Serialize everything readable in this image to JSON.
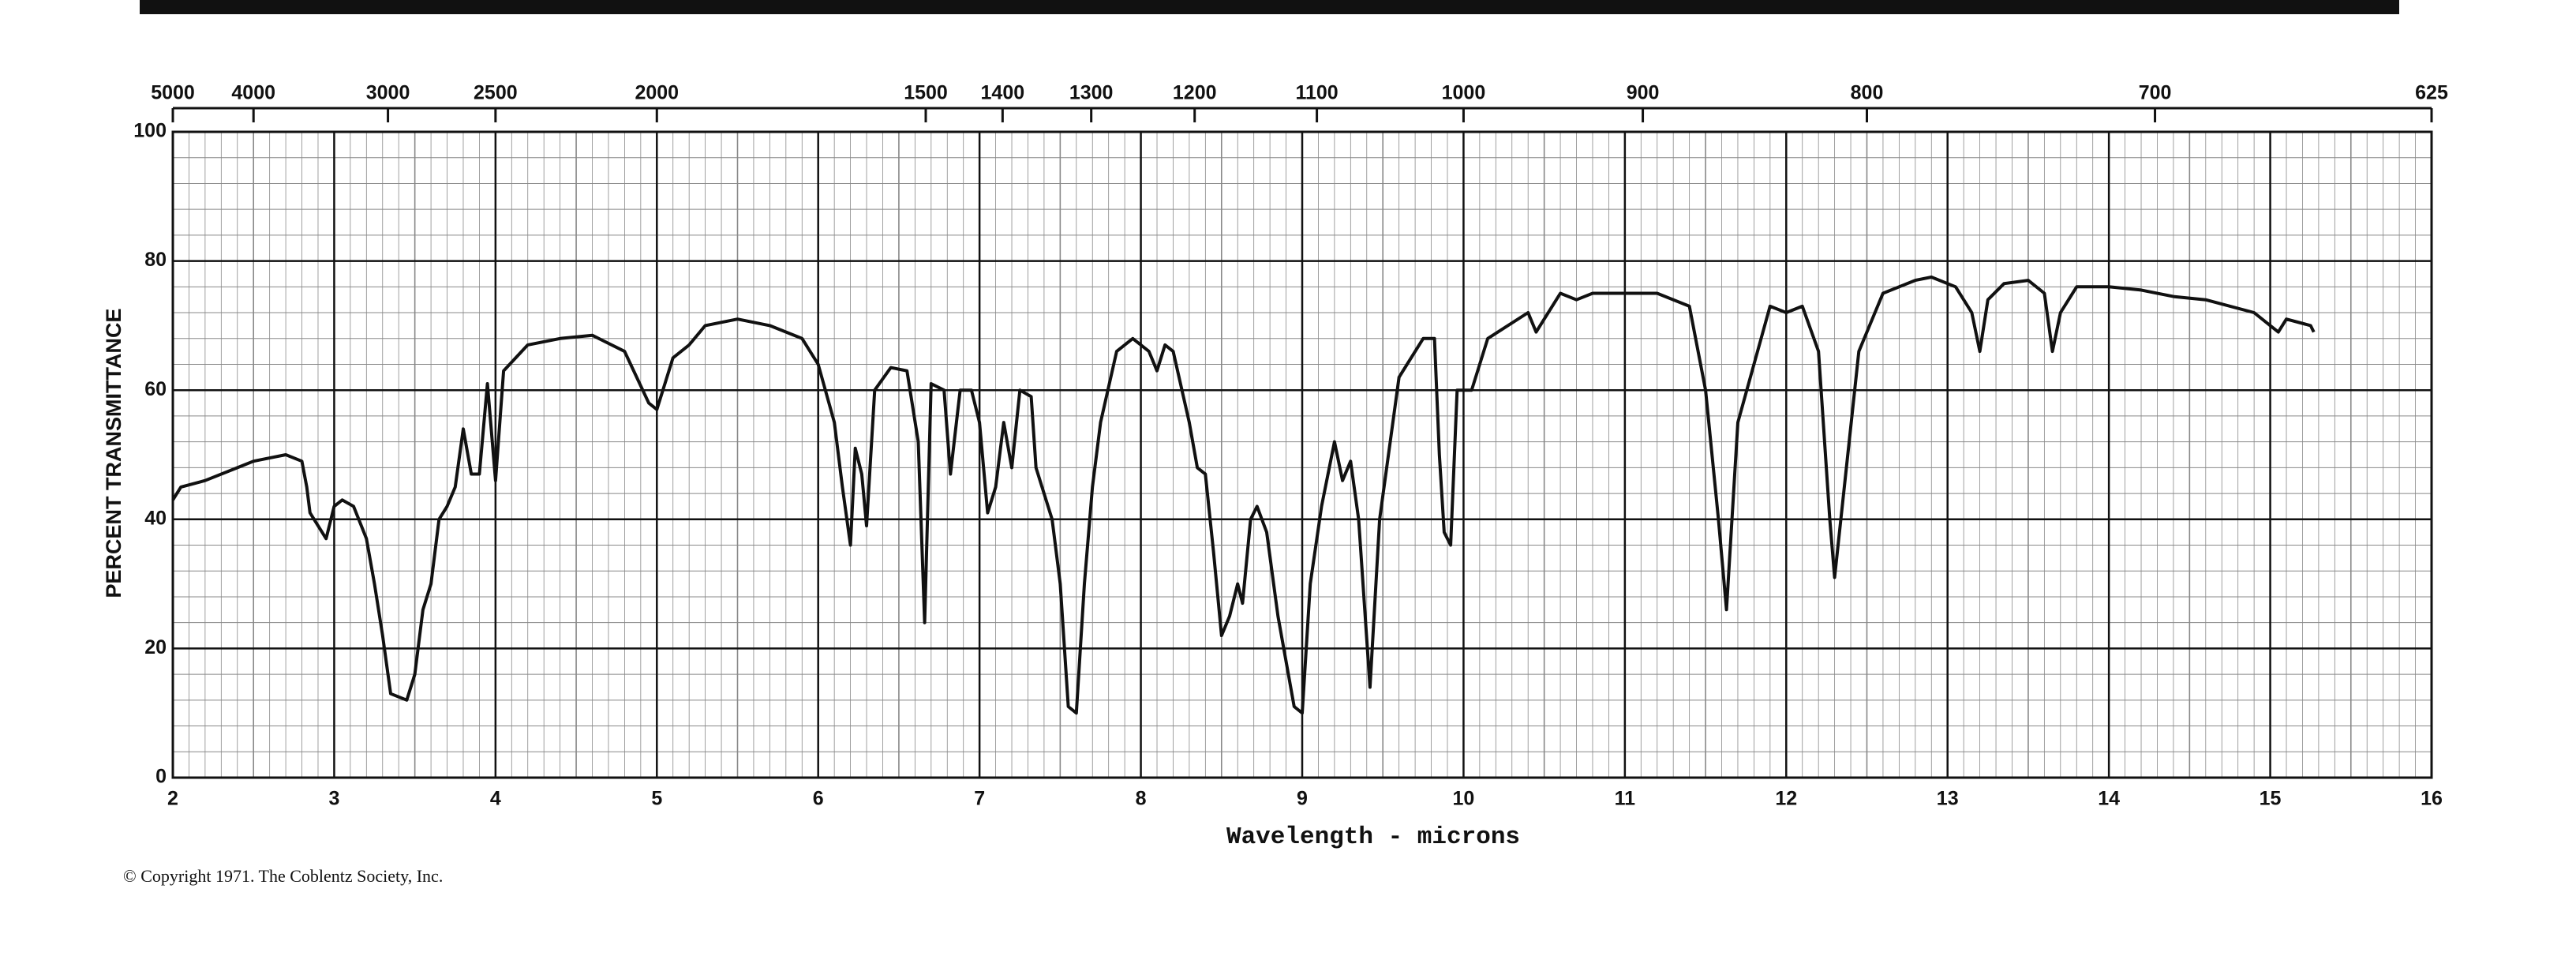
{
  "chart_data": {
    "type": "line",
    "ylabel": "PERCENT TRANSMITTANCE",
    "xlabel": "Wavelength - microns",
    "copyright": "© Copyright 1971. The Coblentz Society, Inc.",
    "color": "#111111",
    "grid": true,
    "minor_grid": true,
    "xlim": [
      2,
      16
    ],
    "xticks": [
      2,
      3,
      4,
      5,
      6,
      7,
      8,
      9,
      10,
      11,
      12,
      13,
      14,
      15,
      16
    ],
    "ylim": [
      0,
      100
    ],
    "yticks": [
      0,
      20,
      40,
      60,
      80,
      100
    ],
    "x2scale": "reciprocal",
    "x2lim": [
      5000,
      625
    ],
    "x2ticks": [
      5000,
      4000,
      3000,
      2500,
      2000,
      1500,
      1400,
      1300,
      1200,
      1100,
      1000,
      900,
      800,
      700,
      625
    ],
    "x": [
      2.0,
      2.05,
      2.2,
      2.4,
      2.5,
      2.6,
      2.7,
      2.8,
      2.83,
      2.85,
      2.95,
      3.0,
      3.05,
      3.12,
      3.2,
      3.25,
      3.3,
      3.35,
      3.45,
      3.5,
      3.55,
      3.6,
      3.65,
      3.7,
      3.75,
      3.8,
      3.85,
      3.9,
      3.95,
      4.0,
      4.05,
      4.2,
      4.4,
      4.6,
      4.8,
      4.95,
      5.0,
      5.1,
      5.2,
      5.3,
      5.5,
      5.7,
      5.9,
      6.0,
      6.1,
      6.15,
      6.2,
      6.23,
      6.27,
      6.3,
      6.35,
      6.45,
      6.55,
      6.62,
      6.66,
      6.7,
      6.78,
      6.82,
      6.88,
      6.95,
      7.0,
      7.05,
      7.1,
      7.15,
      7.2,
      7.25,
      7.32,
      7.35,
      7.45,
      7.5,
      7.55,
      7.6,
      7.65,
      7.7,
      7.75,
      7.85,
      7.95,
      8.05,
      8.1,
      8.15,
      8.2,
      8.3,
      8.35,
      8.4,
      8.45,
      8.5,
      8.55,
      8.6,
      8.63,
      8.68,
      8.72,
      8.78,
      8.85,
      8.95,
      9.0,
      9.05,
      9.12,
      9.2,
      9.25,
      9.3,
      9.35,
      9.42,
      9.48,
      9.6,
      9.75,
      9.82,
      9.85,
      9.88,
      9.92,
      9.96,
      10.05,
      10.15,
      10.4,
      10.45,
      10.6,
      10.7,
      10.8,
      11.0,
      11.2,
      11.4,
      11.5,
      11.58,
      11.63,
      11.7,
      11.9,
      12.0,
      12.1,
      12.2,
      12.27,
      12.3,
      12.36,
      12.45,
      12.6,
      12.8,
      12.9,
      13.05,
      13.15,
      13.2,
      13.25,
      13.35,
      13.5,
      13.6,
      13.65,
      13.7,
      13.8,
      14.0,
      14.2,
      14.4,
      14.6,
      14.9,
      15.0,
      15.05,
      15.1,
      15.25,
      15.27
    ],
    "values": [
      43,
      45,
      46,
      48,
      49,
      49.5,
      50,
      49,
      45,
      41,
      37,
      42,
      43,
      42,
      37,
      30,
      22,
      13,
      12,
      16,
      26,
      30,
      40,
      42,
      45,
      54,
      47,
      47,
      61,
      46,
      63,
      67,
      68,
      68.5,
      66,
      58,
      57,
      65,
      67,
      70,
      71,
      70,
      68,
      64,
      55,
      45,
      36,
      51,
      47,
      39,
      60,
      63.5,
      63,
      52,
      24,
      61,
      60,
      47,
      60,
      60,
      55,
      41,
      45,
      55,
      48,
      60,
      59,
      48,
      40,
      30,
      11,
      10,
      30,
      45,
      55,
      66,
      68,
      66,
      63,
      67,
      66,
      55,
      48,
      47,
      35,
      22,
      25,
      30,
      27,
      40,
      42,
      38,
      25,
      11,
      10,
      30,
      42,
      52,
      46,
      49,
      40,
      14,
      40,
      62,
      68,
      68,
      50,
      38,
      36,
      60,
      60,
      68,
      72,
      69,
      75,
      74,
      75,
      75,
      75,
      73,
      60,
      40,
      26,
      55,
      73,
      72,
      73,
      66,
      40,
      31,
      45,
      66,
      75,
      77,
      77.5,
      76,
      72,
      66,
      74,
      76.5,
      77,
      75,
      66,
      72,
      76,
      76,
      75.5,
      74.5,
      74,
      72,
      70,
      69,
      71,
      70,
      69
    ]
  }
}
